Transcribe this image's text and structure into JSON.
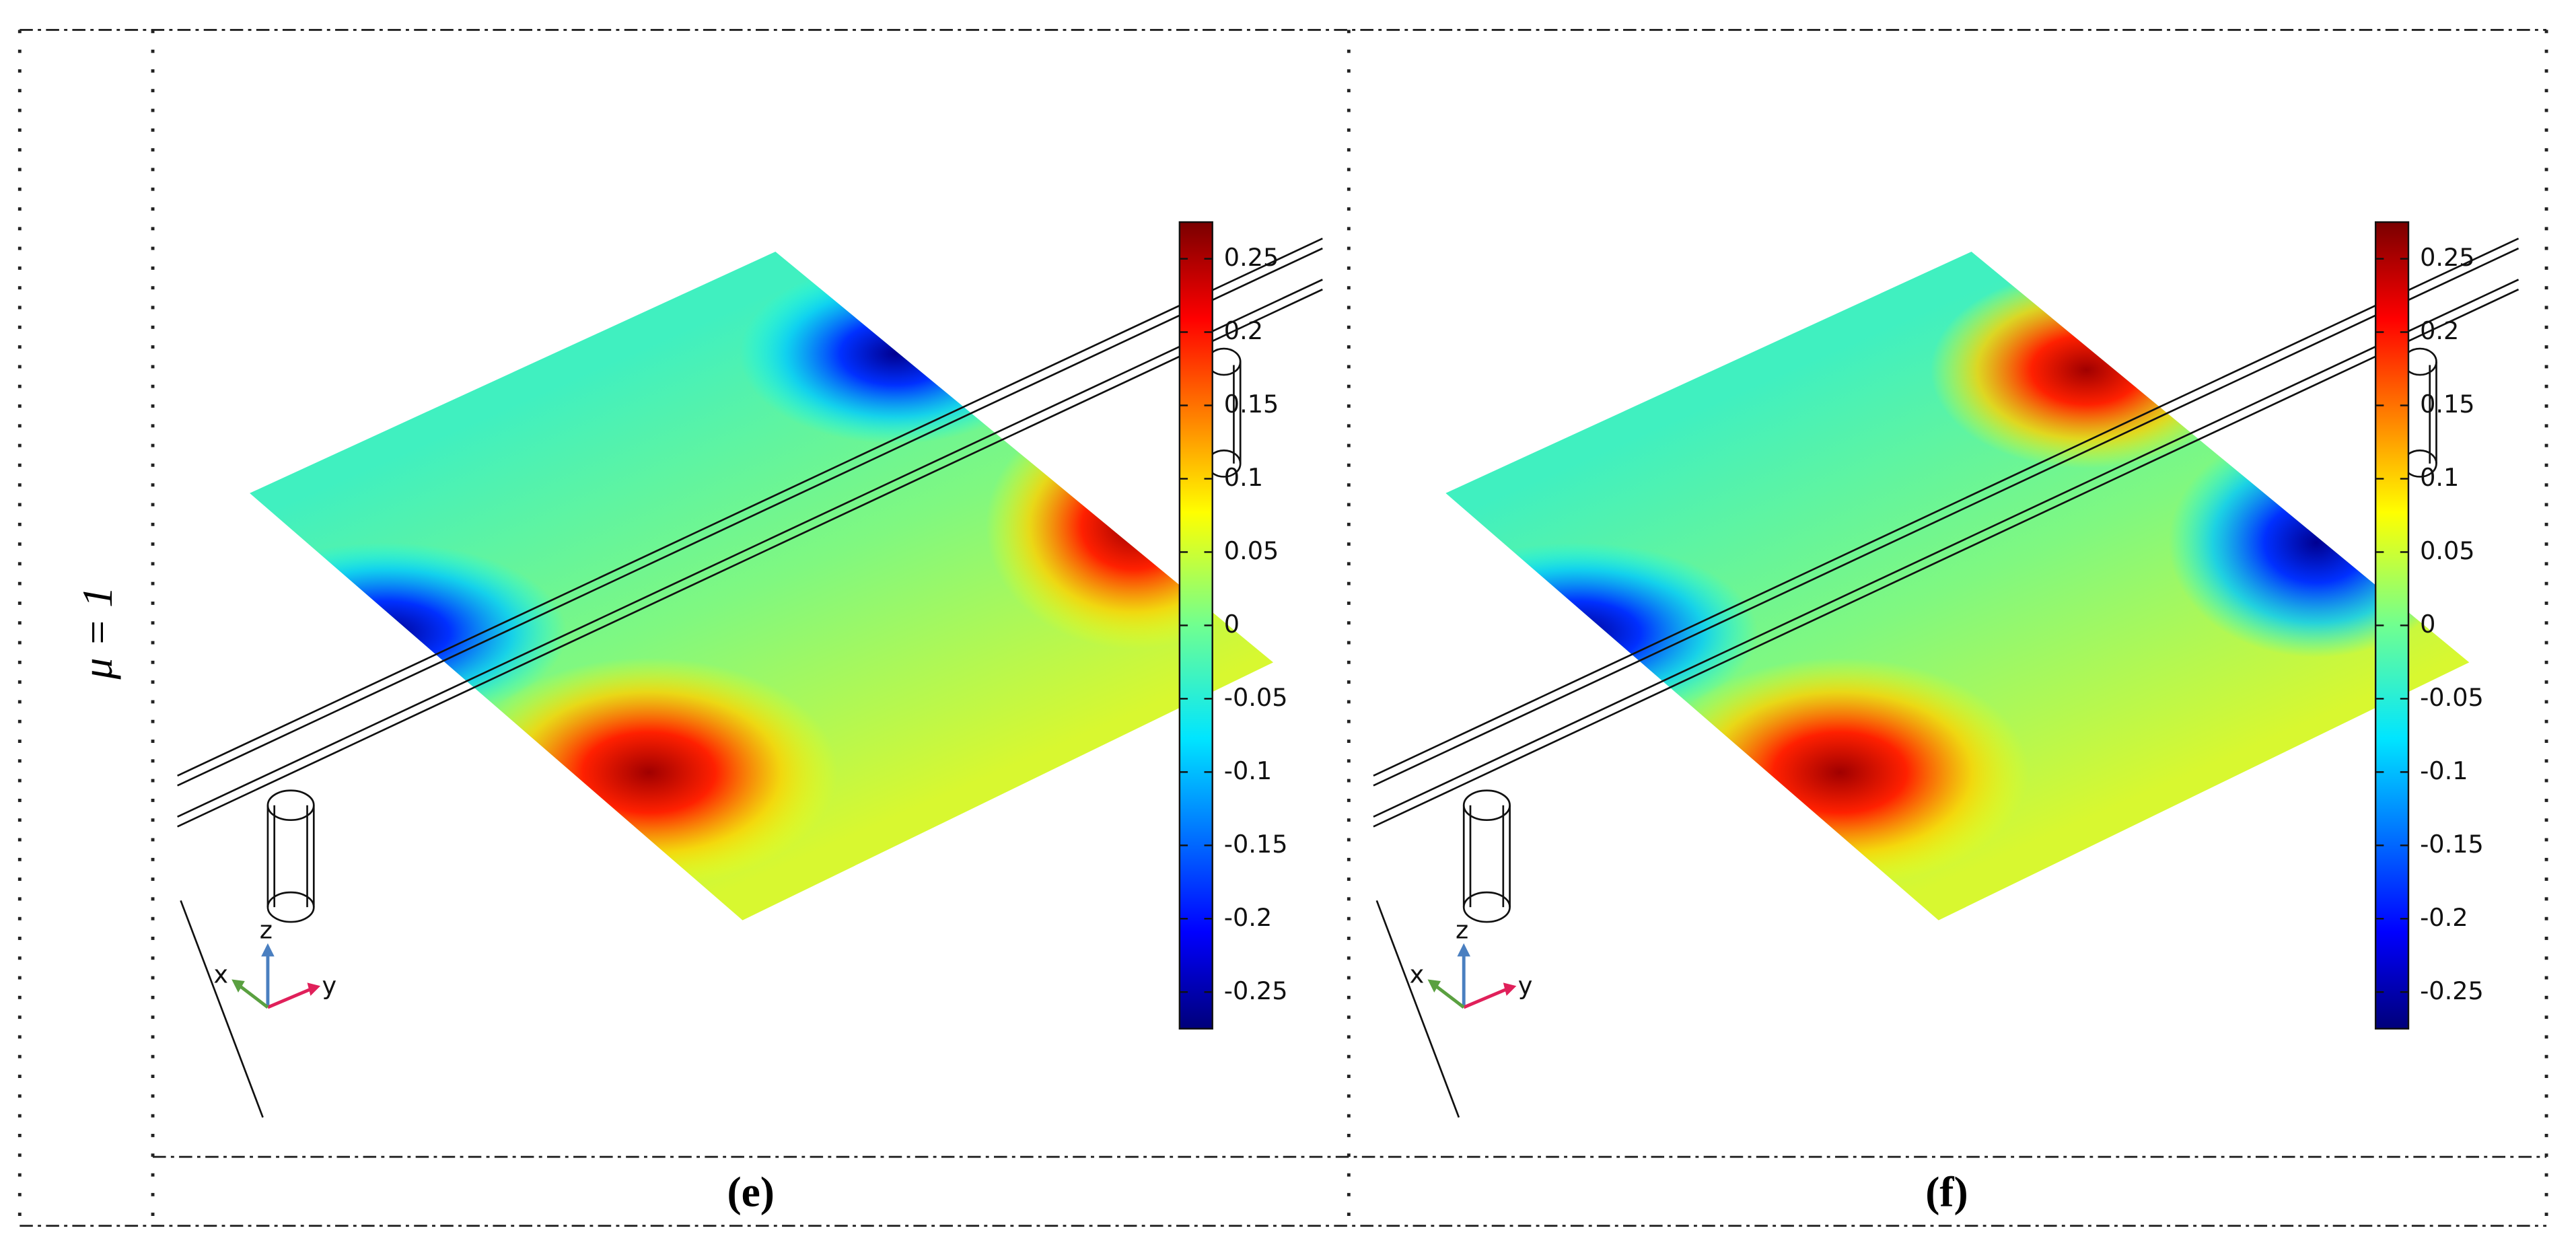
{
  "row_label": "μ = 1",
  "panels": [
    {
      "label": "(e)",
      "axes": {
        "x": "x",
        "y": "y",
        "z": "z"
      },
      "colorbar": {
        "lim": [
          -0.275,
          0.275
        ],
        "ticks": [
          0.25,
          0.2,
          0.15,
          0.1,
          0.05,
          0,
          -0.05,
          -0.1,
          -0.15,
          -0.2,
          -0.25
        ]
      }
    },
    {
      "label": "(f)",
      "axes": {
        "x": "x",
        "y": "y",
        "z": "z"
      },
      "colorbar": {
        "lim": [
          -0.275,
          0.275
        ],
        "ticks": [
          0.25,
          0.2,
          0.15,
          0.1,
          0.05,
          0,
          -0.05,
          -0.1,
          -0.15,
          -0.2,
          -0.25
        ]
      }
    }
  ]
}
